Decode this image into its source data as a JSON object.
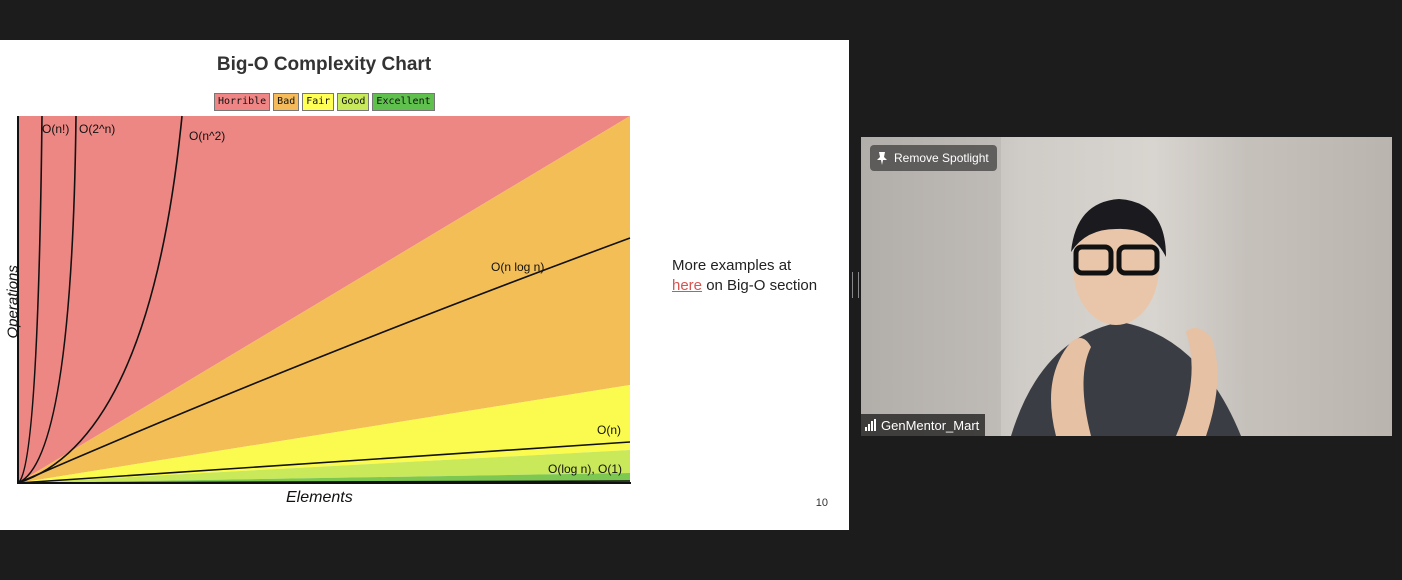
{
  "slide": {
    "title": "Big-O Complexity Chart",
    "legend": [
      {
        "label": "Horrible",
        "color": "#f08585"
      },
      {
        "label": "Bad",
        "color": "#f5bb5a"
      },
      {
        "label": "Fair",
        "color": "#ffff55"
      },
      {
        "label": "Good",
        "color": "#c8ea5a"
      },
      {
        "label": "Excellent",
        "color": "#5fc04e"
      }
    ],
    "side_text_before": "More examples at",
    "side_link": "here",
    "side_text_after": "on Big-O section",
    "page_number": "10"
  },
  "chart_data": {
    "type": "area",
    "title": "Big-O Complexity Chart",
    "xlabel": "Elements",
    "ylabel": "Operations",
    "series": [
      {
        "name": "O(n!)"
      },
      {
        "name": "O(2^n)"
      },
      {
        "name": "O(n^2)"
      },
      {
        "name": "O(n log n)"
      },
      {
        "name": "O(n)"
      },
      {
        "name": "O(log n), O(1)"
      }
    ]
  },
  "video": {
    "spotlight_button": "Remove Spotlight",
    "participant_name": "GenMentor_Mart",
    "pin_icon": "pin-icon",
    "signal_icon": "signal-bars-icon"
  }
}
